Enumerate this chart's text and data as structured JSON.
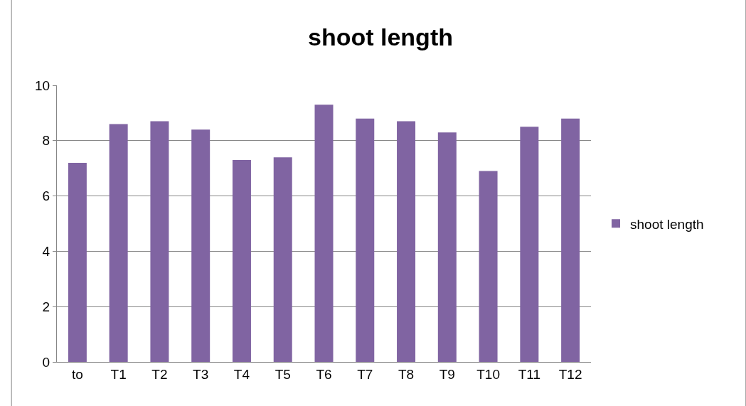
{
  "chart_data": {
    "type": "bar",
    "title": "shoot length",
    "categories": [
      "to",
      "T1",
      "T2",
      "T3",
      "T4",
      "T5",
      "T6",
      "T7",
      "T8",
      "T9",
      "T10",
      "T11",
      "T12"
    ],
    "series": [
      {
        "name": "shoot length",
        "color": "#8064a2",
        "values": [
          7.2,
          8.6,
          8.7,
          8.4,
          7.3,
          7.4,
          9.3,
          8.8,
          8.7,
          8.3,
          6.9,
          8.5,
          8.8
        ]
      }
    ],
    "ylim": [
      0,
      10
    ],
    "yticks": [
      0,
      2,
      4,
      6,
      8,
      10
    ],
    "grid": "y",
    "legend": "right"
  }
}
